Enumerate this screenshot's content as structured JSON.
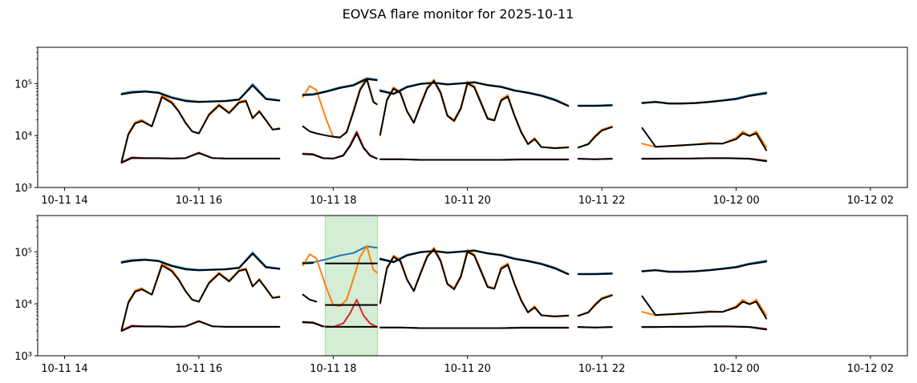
{
  "chart_data": {
    "type": "line",
    "title": "EOVSA flare monitor for 2025-10-11",
    "panels": [
      {
        "id": "top",
        "yscale": "log",
        "ylim": [
          1000,
          500000
        ],
        "xlim_hours": [
          13.6,
          26.55
        ],
        "y_ticks": [
          {
            "v": 1000,
            "label": "10³"
          },
          {
            "v": 10000,
            "label": "10⁴"
          },
          {
            "v": 100000,
            "label": "10⁵"
          }
        ],
        "x_ticks": [
          {
            "h": 14,
            "label": "10-11 14"
          },
          {
            "h": 16,
            "label": "10-11 16"
          },
          {
            "h": 18,
            "label": "10-11 18"
          },
          {
            "h": 20,
            "label": "10-11 20"
          },
          {
            "h": 22,
            "label": "10-11 22"
          },
          {
            "h": 24,
            "label": "10-12 00"
          },
          {
            "h": 26,
            "label": "10-12 02"
          }
        ],
        "highlight": null
      },
      {
        "id": "bottom",
        "yscale": "log",
        "ylim": [
          1000,
          500000
        ],
        "xlim_hours": [
          13.6,
          26.55
        ],
        "y_ticks": [
          {
            "v": 1000,
            "label": "10³"
          },
          {
            "v": 10000,
            "label": "10⁴"
          },
          {
            "v": 100000,
            "label": "10⁵"
          }
        ],
        "x_ticks": [
          {
            "h": 14,
            "label": "10-11 14"
          },
          {
            "h": 16,
            "label": "10-11 16"
          },
          {
            "h": 18,
            "label": "10-11 18"
          },
          {
            "h": 20,
            "label": "10-11 20"
          },
          {
            "h": 22,
            "label": "10-11 22"
          },
          {
            "h": 24,
            "label": "10-12 00"
          },
          {
            "h": 26,
            "label": "10-12 02"
          }
        ],
        "highlight": {
          "start_h": 17.88,
          "end_h": 18.66,
          "color": "#2ca02c"
        }
      }
    ],
    "colors": {
      "blue": "#1f77b4",
      "orange": "#ff7f0e",
      "red": "#d62728",
      "fit": "#000000"
    },
    "segments_hours": [
      [
        14.85,
        17.2
      ],
      [
        17.55,
        18.65
      ],
      [
        18.7,
        21.5
      ],
      [
        21.65,
        22.15
      ],
      [
        22.6,
        24.45
      ]
    ],
    "series": {
      "blue": {
        "x": [
          14.85,
          15.0,
          15.2,
          15.4,
          15.6,
          15.8,
          16.0,
          16.2,
          16.4,
          16.6,
          16.8,
          17.0,
          17.2,
          17.55,
          17.7,
          17.9,
          18.1,
          18.3,
          18.5,
          18.65,
          18.7,
          18.9,
          19.1,
          19.3,
          19.5,
          19.7,
          19.9,
          20.1,
          20.3,
          20.5,
          20.7,
          20.9,
          21.1,
          21.3,
          21.5,
          21.65,
          21.9,
          22.15,
          22.6,
          22.8,
          23.0,
          23.2,
          23.4,
          23.6,
          23.8,
          24.0,
          24.2,
          24.45
        ],
        "y": [
          65000,
          70000,
          72000,
          68000,
          55000,
          48000,
          45000,
          46000,
          47000,
          50000,
          98000,
          52000,
          48000,
          62000,
          63000,
          72000,
          85000,
          95000,
          128000,
          120000,
          75000,
          65000,
          88000,
          100000,
          105000,
          98000,
          102000,
          108000,
          95000,
          88000,
          75000,
          68000,
          60000,
          50000,
          38000,
          38000,
          38000,
          39000,
          43000,
          45000,
          42000,
          42000,
          43000,
          45000,
          48000,
          52000,
          60000,
          68000
        ]
      },
      "orange": {
        "x": [
          14.85,
          14.95,
          15.05,
          15.15,
          15.3,
          15.45,
          15.6,
          15.7,
          15.8,
          15.9,
          16.0,
          16.15,
          16.3,
          16.45,
          16.6,
          16.7,
          16.8,
          16.9,
          17.0,
          17.1,
          17.2,
          17.55,
          17.65,
          17.75,
          17.9,
          18.0,
          18.1,
          18.2,
          18.3,
          18.4,
          18.5,
          18.6,
          18.65,
          18.7,
          18.8,
          18.9,
          19.0,
          19.1,
          19.2,
          19.3,
          19.4,
          19.5,
          19.6,
          19.7,
          19.8,
          19.9,
          20.0,
          20.1,
          20.2,
          20.3,
          20.4,
          20.5,
          20.6,
          20.7,
          20.8,
          20.9,
          21.0,
          21.1,
          21.3,
          21.5,
          21.65,
          21.8,
          21.9,
          22.0,
          22.15,
          22.6,
          22.8,
          23.0,
          23.2,
          23.4,
          23.6,
          23.8,
          24.0,
          24.1,
          24.2,
          24.3,
          24.45
        ],
        "y": [
          3000,
          11000,
          18000,
          20000,
          15000,
          60000,
          45000,
          30000,
          18000,
          12000,
          11000,
          26000,
          40000,
          28000,
          45000,
          48000,
          22000,
          30000,
          20000,
          13000,
          14000,
          55000,
          90000,
          75000,
          20000,
          9500,
          9000,
          12000,
          30000,
          80000,
          130000,
          45000,
          40000,
          10000,
          50000,
          85000,
          70000,
          30000,
          18000,
          40000,
          85000,
          120000,
          70000,
          25000,
          20000,
          35000,
          110000,
          90000,
          45000,
          22000,
          20000,
          50000,
          60000,
          25000,
          12000,
          7000,
          9000,
          6000,
          5800,
          6000,
          5800,
          7000,
          10000,
          13000,
          15000,
          7000,
          6000,
          6200,
          6400,
          6800,
          7200,
          7000,
          9000,
          12000,
          10000,
          12000,
          6000
        ]
      },
      "red": {
        "x": [
          14.85,
          15.0,
          15.2,
          15.4,
          15.6,
          15.8,
          16.0,
          16.2,
          16.4,
          16.6,
          16.8,
          17.0,
          17.2,
          17.55,
          17.7,
          17.85,
          18.0,
          18.15,
          18.25,
          18.35,
          18.45,
          18.55,
          18.65,
          18.7,
          19.0,
          19.3,
          19.6,
          19.9,
          20.2,
          20.5,
          20.8,
          21.1,
          21.5,
          21.65,
          21.9,
          22.15,
          22.6,
          22.8,
          23.0,
          23.3,
          23.6,
          23.9,
          24.2,
          24.45
        ],
        "y": [
          3100,
          3800,
          3700,
          3700,
          3600,
          3700,
          4700,
          3700,
          3600,
          3600,
          3600,
          3600,
          3600,
          4500,
          4400,
          3700,
          3600,
          4200,
          6500,
          12000,
          6000,
          4200,
          3600,
          3500,
          3500,
          3400,
          3400,
          3400,
          3400,
          3400,
          3500,
          3500,
          3500,
          3600,
          3500,
          3600,
          3600,
          3600,
          3600,
          3600,
          3700,
          3700,
          3600,
          3300
        ]
      },
      "fit_blue": {
        "x": [
          14.85,
          15.0,
          15.2,
          15.4,
          15.6,
          15.8,
          16.0,
          16.2,
          16.4,
          16.6,
          16.8,
          17.0,
          17.2,
          17.55,
          17.7,
          17.9,
          18.1,
          18.3,
          18.5,
          18.65,
          18.7,
          18.9,
          19.1,
          19.3,
          19.5,
          19.7,
          19.9,
          20.1,
          20.3,
          20.5,
          20.7,
          20.9,
          21.1,
          21.3,
          21.5,
          21.65,
          21.9,
          22.15,
          22.6,
          22.8,
          23.0,
          23.2,
          23.4,
          23.6,
          23.8,
          24.0,
          24.2,
          24.45
        ],
        "y": [
          62000,
          67000,
          70000,
          66000,
          53000,
          46000,
          44000,
          45000,
          46000,
          49000,
          92000,
          50000,
          47000,
          60000,
          61000,
          70000,
          82000,
          92000,
          122000,
          116000,
          72000,
          63000,
          85000,
          98000,
          103000,
          96000,
          100000,
          105000,
          93000,
          86000,
          73000,
          66000,
          58000,
          48000,
          37000,
          37000,
          37000,
          38000,
          42000,
          44000,
          41000,
          41000,
          42000,
          44000,
          47000,
          50000,
          58000,
          65000
        ]
      },
      "fit_orange": {
        "x": [
          14.85,
          14.95,
          15.05,
          15.15,
          15.3,
          15.45,
          15.6,
          15.7,
          15.8,
          15.9,
          16.0,
          16.15,
          16.3,
          16.45,
          16.6,
          16.7,
          16.8,
          16.9,
          17.0,
          17.1,
          17.2,
          17.55,
          17.65,
          17.75,
          17.9,
          18.0,
          18.1,
          18.2,
          18.3,
          18.4,
          18.5,
          18.6,
          18.65,
          18.7,
          18.8,
          18.9,
          19.0,
          19.1,
          19.2,
          19.3,
          19.4,
          19.5,
          19.6,
          19.7,
          19.8,
          19.9,
          20.0,
          20.1,
          20.2,
          20.3,
          20.4,
          20.5,
          20.6,
          20.7,
          20.8,
          20.9,
          21.0,
          21.1,
          21.3,
          21.5,
          21.65,
          21.8,
          21.9,
          22.0,
          22.15,
          22.6,
          22.8,
          23.0,
          23.2,
          23.4,
          23.6,
          23.8,
          24.0,
          24.1,
          24.2,
          24.3,
          24.45
        ],
        "y": [
          3200,
          10500,
          17000,
          19000,
          15000,
          55000,
          42000,
          29000,
          17500,
          12000,
          11000,
          25000,
          38000,
          27000,
          43000,
          46000,
          21500,
          29000,
          19500,
          13000,
          13500,
          15000,
          12000,
          11000,
          10000,
          9500,
          9200,
          11500,
          28000,
          75000,
          120000,
          44000,
          40000,
          10500,
          48000,
          80000,
          66000,
          29000,
          17500,
          38000,
          80000,
          112000,
          66000,
          24000,
          19000,
          33000,
          100000,
          85000,
          42000,
          21000,
          19500,
          47000,
          56000,
          24000,
          11500,
          6800,
          8500,
          6000,
          5700,
          5900,
          5900,
          6800,
          9500,
          12500,
          14500,
          14000,
          6100,
          6300,
          6500,
          6700,
          7000,
          7000,
          8500,
          11000,
          9800,
          11000,
          5200
        ]
      },
      "fit_red": {
        "x": [
          14.85,
          15.0,
          15.2,
          15.4,
          15.6,
          15.8,
          16.0,
          16.2,
          16.4,
          16.6,
          16.8,
          17.0,
          17.2,
          17.55,
          17.7,
          17.85,
          18.0,
          18.15,
          18.25,
          18.35,
          18.45,
          18.55,
          18.65,
          18.7,
          19.0,
          19.3,
          19.6,
          19.9,
          20.2,
          20.5,
          20.8,
          21.1,
          21.5,
          21.65,
          21.9,
          22.15,
          22.6,
          22.8,
          23.0,
          23.3,
          23.6,
          23.9,
          24.2,
          24.45
        ],
        "y": [
          3000,
          3700,
          3650,
          3650,
          3600,
          3650,
          4600,
          3700,
          3600,
          3600,
          3600,
          3600,
          3600,
          4400,
          4300,
          3650,
          3600,
          4100,
          6200,
          11000,
          5800,
          4100,
          3600,
          3500,
          3500,
          3400,
          3400,
          3400,
          3400,
          3400,
          3450,
          3450,
          3450,
          3550,
          3500,
          3550,
          3550,
          3550,
          3600,
          3600,
          3650,
          3650,
          3550,
          3200
        ]
      },
      "fit_bottom_in_band": {
        "blue": {
          "x": [
            17.88,
            18.66
          ],
          "y": [
            60000,
            60000
          ]
        },
        "orange": {
          "x": [
            17.88,
            18.66
          ],
          "y": [
            9500,
            9500
          ]
        },
        "red": {
          "x": [
            17.88,
            18.66
          ],
          "y": [
            3600,
            3600
          ]
        }
      }
    }
  }
}
